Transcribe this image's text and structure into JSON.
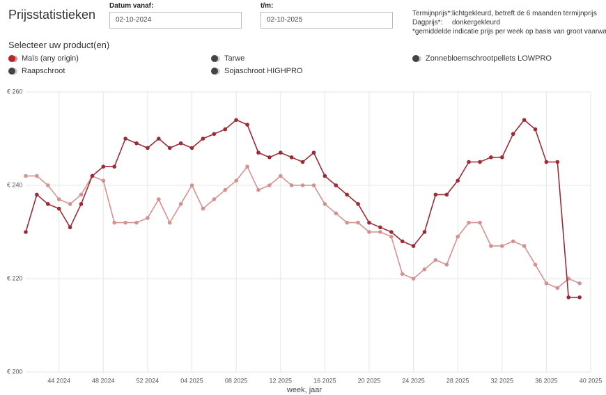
{
  "header": {
    "title": "Prijsstatistieken"
  },
  "filters": {
    "from": {
      "label": "Datum vanaf:",
      "value": "02-10-2024"
    },
    "to": {
      "label": "t/m:",
      "value": "02-10-2025"
    }
  },
  "notes": {
    "rows": [
      [
        "Termijnprijs*:",
        "lichtgekleurd, betreft de 6 maanden termijnprijs"
      ],
      [
        "Dagprijs*:",
        "donkergekleurd"
      ]
    ],
    "footnote": "*gemiddelde indicatie prijs per week op basis van groot vaarwater"
  },
  "products": {
    "title": "Selecteer uw product(en)",
    "items": [
      {
        "label": "Maïs (any origin)",
        "selected": true
      },
      {
        "label": "Tarwe",
        "selected": false
      },
      {
        "label": "Zonnebloemschrootpellets LOWPRO",
        "selected": false
      },
      {
        "label": "Raapschroot",
        "selected": false
      },
      {
        "label": "Sojaschroot HIGHPRO",
        "selected": false
      }
    ]
  },
  "chart_data": {
    "type": "line",
    "x_label": "week, jaar",
    "grid": true,
    "x": [
      0,
      1,
      2,
      3,
      4,
      5,
      6,
      7,
      8,
      9,
      10,
      11,
      12,
      13,
      14,
      15,
      16,
      17,
      18,
      19,
      20,
      21,
      22,
      23,
      24,
      25,
      26,
      27,
      28,
      29,
      30,
      31,
      32,
      33,
      34,
      35,
      36,
      37,
      38,
      39,
      40,
      41,
      42,
      43,
      44,
      45,
      46,
      47,
      48,
      49,
      50
    ],
    "xlim": [
      0,
      51
    ],
    "xticks": [
      {
        "value": 3,
        "label": "44 2024"
      },
      {
        "value": 7,
        "label": "48 2024"
      },
      {
        "value": 11,
        "label": "52 2024"
      },
      {
        "value": 15,
        "label": "04 2025"
      },
      {
        "value": 19,
        "label": "08 2025"
      },
      {
        "value": 23,
        "label": "12 2025"
      },
      {
        "value": 27,
        "label": "16 2025"
      },
      {
        "value": 31,
        "label": "20 2025"
      },
      {
        "value": 35,
        "label": "24 2025"
      },
      {
        "value": 39,
        "label": "28 2025"
      },
      {
        "value": 43,
        "label": "32 2025"
      },
      {
        "value": 47,
        "label": "36 2025"
      },
      {
        "value": 51,
        "label": "40 2025"
      }
    ],
    "ylim": [
      200,
      260
    ],
    "yticks": [
      {
        "value": 200,
        "label": "€ 200"
      },
      {
        "value": 220,
        "label": "€ 220"
      },
      {
        "value": 240,
        "label": "€ 240"
      },
      {
        "value": 260,
        "label": "€ 260"
      }
    ],
    "series": [
      {
        "color": "#d4928f",
        "values": [
          242,
          242,
          240,
          237,
          236,
          238,
          242,
          241,
          232,
          232,
          232,
          233,
          237,
          232,
          236,
          240,
          235,
          237,
          239,
          241,
          244,
          239,
          240,
          242,
          240,
          240,
          240,
          236,
          234,
          232,
          232,
          230,
          230,
          229,
          221,
          220,
          222,
          224,
          223,
          229,
          232,
          232,
          227,
          227,
          228,
          227,
          223,
          219,
          218,
          220,
          219
        ]
      },
      {
        "color": "#9b2a35",
        "values": [
          230,
          238,
          236,
          235,
          231,
          236,
          242,
          244,
          244,
          250,
          249,
          248,
          250,
          248,
          249,
          248,
          250,
          251,
          252,
          254,
          253,
          247,
          246,
          247,
          246,
          245,
          247,
          242,
          240,
          238,
          236,
          232,
          231,
          230,
          228,
          227,
          230,
          238,
          238,
          241,
          245,
          245,
          246,
          246,
          251,
          254,
          252,
          245,
          245,
          216,
          216
        ]
      }
    ]
  }
}
